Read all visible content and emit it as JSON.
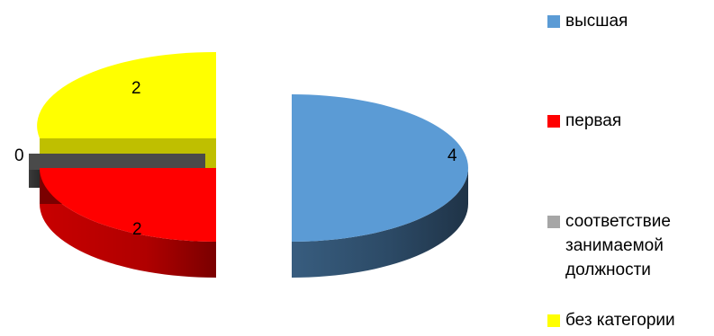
{
  "chart_data": {
    "type": "pie",
    "style": "3d-exploded",
    "categories": [
      "высшая",
      "первая",
      "соответствие занимаемой должности",
      "без категории"
    ],
    "values": [
      4,
      2,
      0,
      2
    ],
    "data_labels": [
      "4",
      "2",
      "0",
      "2"
    ],
    "colors": [
      "#5b9bd5",
      "#ff0000",
      "#4a4a4a",
      "#ffff00"
    ],
    "legend_placement": "right",
    "title": ""
  }
}
